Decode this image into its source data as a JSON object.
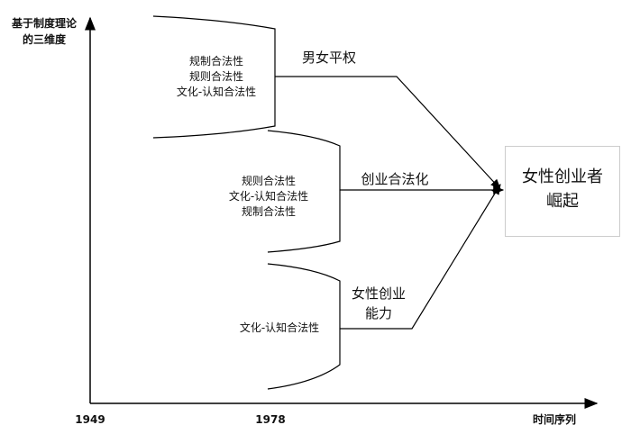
{
  "axes": {
    "y_label": "基于制度理论\n的三维度",
    "x_label": "时间序列",
    "tick_1949": "1949",
    "tick_1978": "1978"
  },
  "stages": [
    {
      "lines": [
        "规制合法性",
        "规则合法性",
        "文化-认知合法性"
      ]
    },
    {
      "lines": [
        "规则合法性",
        "文化-认知合法性",
        "规制合法性"
      ]
    },
    {
      "lines": [
        "文化-认知合法性"
      ]
    }
  ],
  "arrows": {
    "a1": "男女平权",
    "a2": "创业合法化",
    "a3_line1": "女性创业",
    "a3_line2": "能力"
  },
  "outcome": {
    "line1": "女性创业者",
    "line2": "崛起"
  }
}
